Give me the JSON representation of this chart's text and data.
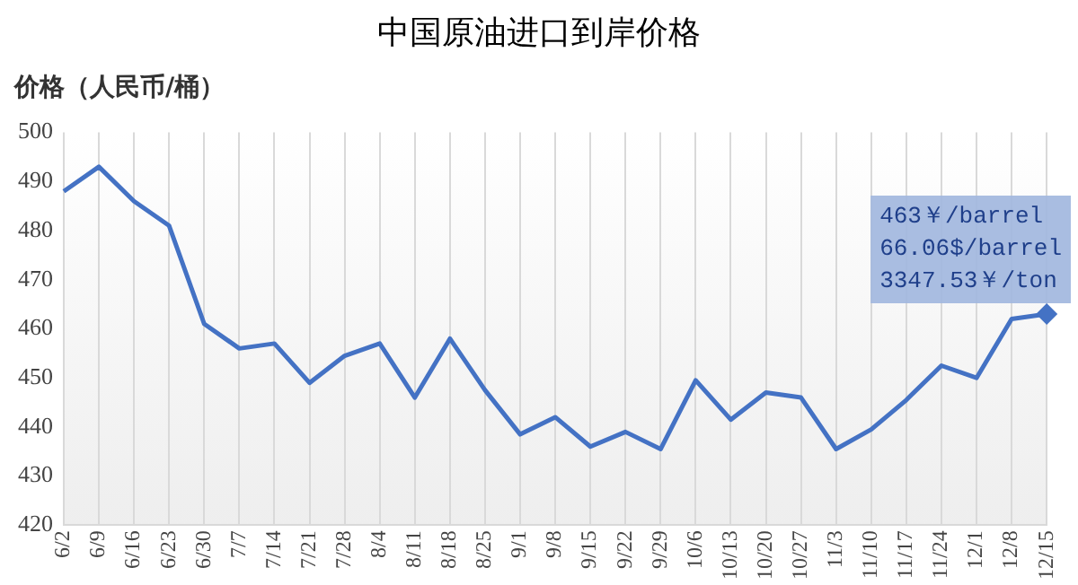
{
  "chart_data": {
    "type": "line",
    "title": "中国原油进口到岸价格",
    "ylabel": "价格（人民币/桶）",
    "categories": [
      "6/2",
      "6/9",
      "6/16",
      "6/23",
      "6/30",
      "7/7",
      "7/14",
      "7/21",
      "7/28",
      "8/4",
      "8/11",
      "8/18",
      "8/25",
      "9/1",
      "9/8",
      "9/15",
      "9/22",
      "9/29",
      "10/6",
      "10/13",
      "10/20",
      "10/27",
      "11/3",
      "11/10",
      "11/17",
      "11/24",
      "12/1",
      "12/8",
      "12/15"
    ],
    "series": [
      {
        "color": "#4472c4",
        "values": [
          488,
          493,
          486,
          481,
          461,
          456,
          457,
          449,
          454.5,
          457,
          446,
          458,
          447.5,
          438.5,
          442,
          436,
          439,
          435.5,
          449.5,
          441.5,
          447,
          446,
          435.5,
          439.5,
          445.5,
          452.5,
          450,
          462,
          463
        ]
      }
    ],
    "ylim": [
      420,
      500
    ],
    "yticks": [
      420,
      430,
      440,
      450,
      460,
      470,
      480,
      490,
      500
    ],
    "grid": "x",
    "legend": false,
    "annotations": [
      {
        "text": "463￥/barrel\n66.06$/barrel\n3347.53￥/ton",
        "x": "12/15",
        "y": 463
      }
    ]
  }
}
